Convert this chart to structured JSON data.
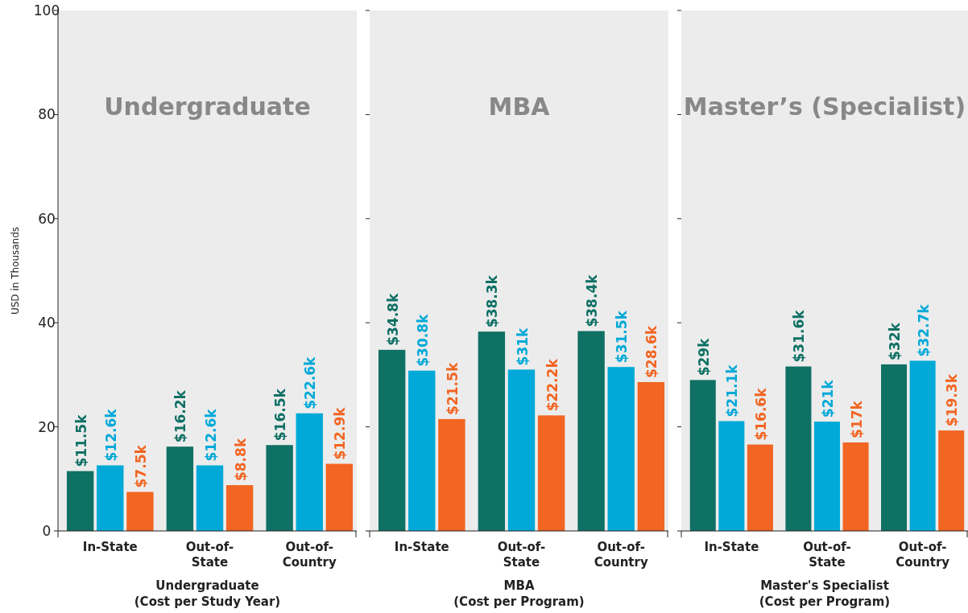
{
  "chart_data": [
    {
      "type": "bar",
      "title": "Undergraduate",
      "xlabel": "Undergraduate\n(Cost per Study Year)",
      "ylabel": "USD in Thousands",
      "categories": [
        "In-State",
        "Out-of-State",
        "Out-of-Country"
      ],
      "ylim": [
        0,
        100
      ],
      "yticks": [
        0,
        20,
        40,
        60,
        80,
        100
      ],
      "grid": false,
      "series": [
        {
          "color": "#0f7064",
          "values": [
            11.5,
            16.2,
            16.5
          ],
          "value_labels": [
            "$11.5k",
            "$16.2k",
            "$16.5k"
          ]
        },
        {
          "color": "#00a9d8",
          "values": [
            12.6,
            12.6,
            22.6
          ],
          "value_labels": [
            "$12.6k",
            "$12.6k",
            "$22.6k"
          ]
        },
        {
          "color": "#f26522",
          "values": [
            7.5,
            8.8,
            12.9
          ],
          "value_labels": [
            "$7.5k",
            "$8.8k",
            "$12.9k"
          ]
        }
      ]
    },
    {
      "type": "bar",
      "title": "MBA",
      "xlabel": "MBA\n(Cost per Program)",
      "categories": [
        "In-State",
        "Out-of-State",
        "Out-of-Country"
      ],
      "ylim": [
        0,
        100
      ],
      "yticks": [
        0,
        20,
        40,
        60,
        80,
        100
      ],
      "tick_labels": "x",
      "grid": false,
      "series": [
        {
          "color": "#0f7064",
          "values": [
            34.8,
            38.3,
            38.4
          ],
          "value_labels": [
            "$34.8k",
            "$38.3k",
            "$38.4k"
          ]
        },
        {
          "color": "#00a9d8",
          "values": [
            30.8,
            31,
            31.5
          ],
          "value_labels": [
            "$30.8k",
            "$31k",
            "$31.5k"
          ]
        },
        {
          "color": "#f26522",
          "values": [
            21.5,
            22.2,
            28.6
          ],
          "value_labels": [
            "$21.5k",
            "$22.2k",
            "$28.6k"
          ]
        }
      ]
    },
    {
      "type": "bar",
      "title": "Master’s (Specialist)",
      "xlabel": "Master's Specialist\n(Cost per Program)",
      "categories": [
        "In-State",
        "Out-of-State",
        "Out-of-Country"
      ],
      "ylim": [
        0,
        100
      ],
      "yticks": [
        0,
        20,
        40,
        60,
        80,
        100
      ],
      "tick_labels": "x",
      "grid": false,
      "series": [
        {
          "color": "#0f7064",
          "values": [
            29,
            31.6,
            32
          ],
          "value_labels": [
            "$29k",
            "$31.6k",
            "$32k"
          ]
        },
        {
          "color": "#00a9d8",
          "values": [
            21.1,
            21,
            32.7
          ],
          "value_labels": [
            "$21.1k",
            "$21k",
            "$32.7k"
          ]
        },
        {
          "color": "#f26522",
          "values": [
            16.6,
            17,
            19.3
          ],
          "value_labels": [
            "$16.6k",
            "$17k",
            "$19.3k"
          ]
        }
      ]
    }
  ]
}
